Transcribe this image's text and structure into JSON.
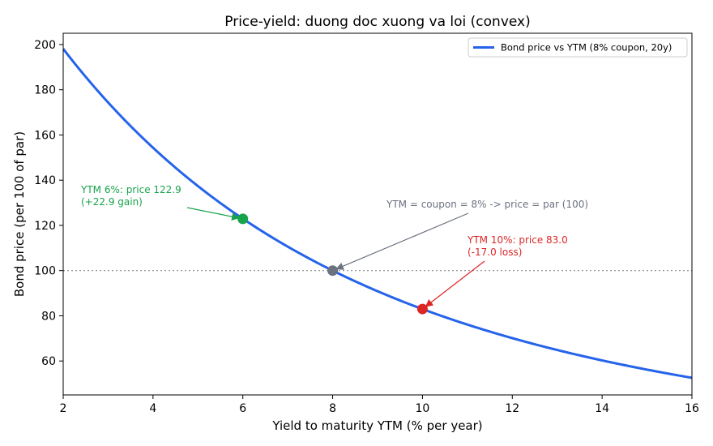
{
  "chart_data": {
    "type": "line",
    "title": "Price-yield: duong doc xuong va loi (convex)",
    "xlabel": "Yield to maturity YTM (% per year)",
    "ylabel": "Bond price (per 100 of par)",
    "xlim": [
      2,
      16
    ],
    "ylim": [
      45,
      205
    ],
    "xticks": [
      2,
      4,
      6,
      8,
      10,
      12,
      14,
      16
    ],
    "yticks": [
      60,
      80,
      100,
      120,
      140,
      160,
      180,
      200
    ],
    "grid": false,
    "legend_position": "top-right",
    "series": [
      {
        "name": "Bond price vs YTM (8% coupon, 20y)",
        "color": "#2563eb",
        "coupon_rate": 0.08,
        "years": 20,
        "face": 100
      }
    ],
    "reference_line": {
      "y": 100,
      "style": "dotted",
      "color": "#888888"
    },
    "points": [
      {
        "x": 6,
        "y": 122.9,
        "color": "#16a34a",
        "label_line1": "YTM 6%: price 122.9",
        "label_line2": "(+22.9 gain)"
      },
      {
        "x": 8,
        "y": 100,
        "color": "#6b7280",
        "label_line1": "YTM = coupon = 8% -> price = par (100)",
        "label_line2": ""
      },
      {
        "x": 10,
        "y": 83.0,
        "color": "#dc2626",
        "label_line1": "YTM 10%: price 83.0",
        "label_line2": "(-17.0 loss)"
      }
    ]
  }
}
